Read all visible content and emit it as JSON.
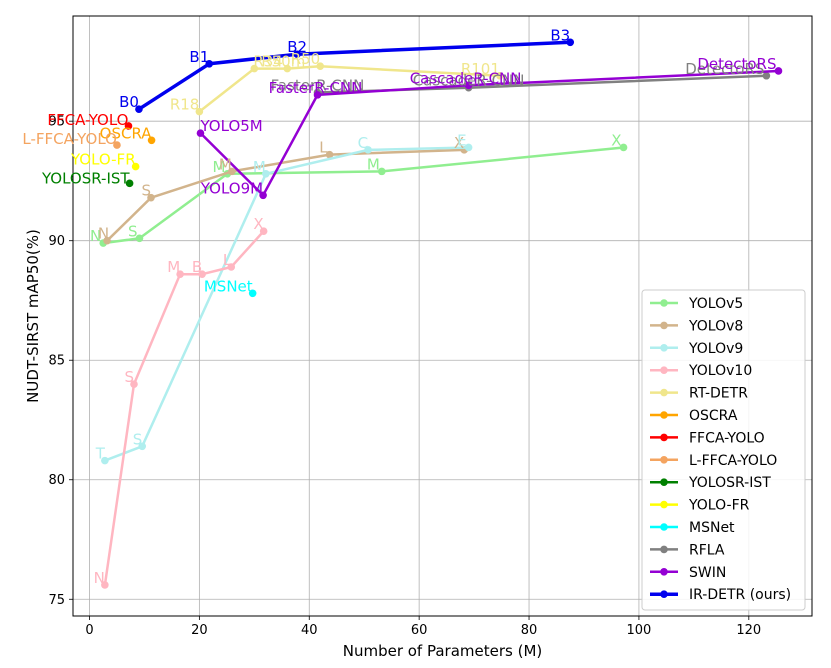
{
  "chart_data": {
    "type": "line",
    "title": "",
    "xlabel": "Number of Parameters (M)",
    "ylabel": "NUDT-SIRST mAP50(%)",
    "xlim": [
      -3,
      131.5
    ],
    "ylim": [
      74.3,
      99.4
    ],
    "xticks": [
      0,
      20,
      40,
      60,
      80,
      100,
      120
    ],
    "yticks": [
      75,
      80,
      85,
      90,
      95
    ],
    "grid": true,
    "legend_position": "lower-right",
    "series": [
      {
        "name": "YOLOv5",
        "color": "#90EE90",
        "linewidth": 2.5,
        "points": [
          {
            "x": 2.5,
            "y": 89.9,
            "label": "N"
          },
          {
            "x": 9.1,
            "y": 90.1,
            "label": "S"
          },
          {
            "x": 25.1,
            "y": 92.8,
            "label": "M"
          },
          {
            "x": 53.2,
            "y": 92.9,
            "label": "M"
          },
          {
            "x": 97.2,
            "y": 93.9,
            "label": "X"
          }
        ]
      },
      {
        "name": "YOLOv8",
        "color": "#D2B48C",
        "linewidth": 2.5,
        "points": [
          {
            "x": 3.2,
            "y": 90.0,
            "label": "N"
          },
          {
            "x": 11.2,
            "y": 91.8,
            "label": "S"
          },
          {
            "x": 25.9,
            "y": 92.9,
            "label": "M"
          },
          {
            "x": 43.7,
            "y": 93.6,
            "label": "L"
          },
          {
            "x": 68.2,
            "y": 93.8,
            "label": "X"
          }
        ]
      },
      {
        "name": "YOLOv9",
        "color": "#AFEEEE",
        "linewidth": 2.5,
        "points": [
          {
            "x": 2.8,
            "y": 80.8,
            "label": "T"
          },
          {
            "x": 9.6,
            "y": 81.4,
            "label": "S"
          },
          {
            "x": 32.1,
            "y": 92.8,
            "label": "M"
          },
          {
            "x": 50.7,
            "y": 93.8,
            "label": "C"
          },
          {
            "x": 69.0,
            "y": 93.9,
            "label": "E"
          }
        ]
      },
      {
        "name": "YOLOv10",
        "color": "#FFB6C1",
        "linewidth": 2.5,
        "points": [
          {
            "x": 2.8,
            "y": 75.6,
            "label": "N"
          },
          {
            "x": 8.1,
            "y": 84.0,
            "label": "S"
          },
          {
            "x": 16.5,
            "y": 88.6,
            "label": "M"
          },
          {
            "x": 20.5,
            "y": 88.6,
            "label": "B"
          },
          {
            "x": 25.8,
            "y": 88.9,
            "label": "L"
          },
          {
            "x": 31.7,
            "y": 90.4,
            "label": "X"
          }
        ]
      },
      {
        "name": "RT-DETR",
        "color": "#F0E68C",
        "linewidth": 2.5,
        "points": [
          {
            "x": 20.0,
            "y": 95.4,
            "label": "R18"
          },
          {
            "x": 30.0,
            "y": 97.2,
            "label": "R34"
          },
          {
            "x": 36.0,
            "y": 97.2,
            "label": "R50m"
          },
          {
            "x": 42.0,
            "y": 97.3,
            "label": "R50"
          },
          {
            "x": 74.7,
            "y": 96.9,
            "label": "R101"
          }
        ]
      },
      {
        "name": "OSCRA",
        "color": "#FFA500",
        "linewidth": 2.5,
        "points": [
          {
            "x": 11.3,
            "y": 94.2,
            "label": "OSCRA"
          }
        ]
      },
      {
        "name": "FFCA-YOLO",
        "color": "#FF0000",
        "linewidth": 2.5,
        "points": [
          {
            "x": 7.1,
            "y": 94.8,
            "label": "FFCA-YOLO"
          }
        ]
      },
      {
        "name": "L-FFCA-YOLO",
        "color": "#F4A460",
        "linewidth": 2.5,
        "points": [
          {
            "x": 5.0,
            "y": 94.0,
            "label": "L-FFCA-YOLO"
          }
        ]
      },
      {
        "name": "YOLOSR-IST",
        "color": "#008000",
        "linewidth": 2.5,
        "points": [
          {
            "x": 7.3,
            "y": 92.4,
            "label": "YOLOSR-IST"
          }
        ]
      },
      {
        "name": "YOLO-FR",
        "color": "#FFFF00",
        "linewidth": 2.5,
        "points": [
          {
            "x": 8.4,
            "y": 93.1,
            "label": "YOLO-FR"
          }
        ]
      },
      {
        "name": "MSNet",
        "color": "#00FFFF",
        "linewidth": 2.5,
        "points": [
          {
            "x": 29.7,
            "y": 87.8,
            "label": "MSNet"
          }
        ]
      },
      {
        "name": "RFLA",
        "color": "#808080",
        "linewidth": 2.5,
        "points": [
          {
            "x": 41.5,
            "y": 96.2,
            "label": "FasterR-CNN"
          },
          {
            "x": 69.0,
            "y": 96.4,
            "label": "CascadeR-CNN"
          },
          {
            "x": 123.2,
            "y": 96.9,
            "label": "DetectoRS"
          }
        ]
      },
      {
        "name": "SWIN",
        "color": "#9400D3",
        "linewidth": 2.5,
        "points": [
          {
            "x": 20.2,
            "y": 94.5,
            "label": "YOLO5M"
          },
          {
            "x": 31.6,
            "y": 91.9,
            "label": "YOLO9M"
          },
          {
            "x": 41.5,
            "y": 96.1,
            "label": "FasterR-CNN"
          },
          {
            "x": 69.0,
            "y": 96.5,
            "label": "CascadeR-CNN"
          },
          {
            "x": 125.4,
            "y": 97.1,
            "label": "DetectoRS"
          }
        ]
      },
      {
        "name": "IR-DETR (ours)",
        "color": "#0000EE",
        "linewidth": 3.5,
        "points": [
          {
            "x": 9.0,
            "y": 95.5,
            "label": "B0"
          },
          {
            "x": 21.8,
            "y": 97.4,
            "label": "B1"
          },
          {
            "x": 37.8,
            "y": 97.8,
            "label": "B2"
          },
          {
            "x": 87.5,
            "y": 98.3,
            "label": "B3"
          }
        ]
      }
    ]
  }
}
